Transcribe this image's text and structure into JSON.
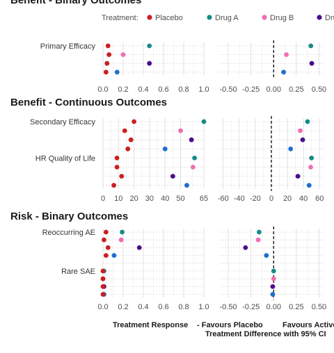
{
  "legend": {
    "title": "Treatment:",
    "items": [
      {
        "name": "Placebo",
        "color": "#CC1F1F"
      },
      {
        "name": "Drug A",
        "color": "#178A8A"
      },
      {
        "name": "Drug B",
        "color": "#F06EB0"
      },
      {
        "name": "Drug C",
        "color": "#4B0C8C"
      }
    ]
  },
  "colors": {
    "Placebo": "#CC1F1F",
    "Drug A": "#178A8A",
    "Drug B": "#F06EB0",
    "Drug C": "#4B0C8C",
    "Drug D": "#1F6FD0"
  },
  "footer": {
    "left_caption": "Treatment Response",
    "diff_left": "- Favours Placebo",
    "diff_right": "Favours Active",
    "diff_caption": "Treatment Difference with 95% CI"
  },
  "chart_data": [
    {
      "type": "scatter",
      "section": "Benefit - Binary Outcomes",
      "panel": "Treatment Response",
      "xlim": [
        0,
        1
      ],
      "xticks": [
        0,
        0.2,
        0.4,
        0.6,
        0.8,
        1.0
      ],
      "xtick_labels": [
        "0.0",
        "0.2",
        "0.4",
        "0.6",
        "0.8",
        "1.0"
      ],
      "row_labels": [
        {
          "label": "Primary Efficacy",
          "row": 0
        }
      ],
      "points": [
        {
          "row": 0,
          "treatment": "Placebo",
          "x": 0.05
        },
        {
          "row": 0,
          "treatment": "Drug A",
          "x": 0.46
        },
        {
          "row": 1,
          "treatment": "Placebo",
          "x": 0.06
        },
        {
          "row": 1,
          "treatment": "Drug B",
          "x": 0.2
        },
        {
          "row": 2,
          "treatment": "Placebo",
          "x": 0.04
        },
        {
          "row": 2,
          "treatment": "Drug C",
          "x": 0.46
        },
        {
          "row": 3,
          "treatment": "Placebo",
          "x": 0.03
        },
        {
          "row": 3,
          "treatment": "Drug D",
          "x": 0.14
        }
      ]
    },
    {
      "type": "scatter",
      "section": "Benefit - Binary Outcomes",
      "panel": "Treatment Difference",
      "xlim": [
        -0.6,
        0.55
      ],
      "xticks": [
        -0.5,
        -0.25,
        0,
        0.25,
        0.5
      ],
      "xtick_labels": [
        "-0.50",
        "-0.25",
        "0.00",
        "0.25",
        "0.50"
      ],
      "reference_line": 0,
      "points": [
        {
          "row": 0,
          "treatment": "Drug A",
          "x": 0.41
        },
        {
          "row": 1,
          "treatment": "Drug B",
          "x": 0.14
        },
        {
          "row": 2,
          "treatment": "Drug C",
          "x": 0.42
        },
        {
          "row": 3,
          "treatment": "Drug D",
          "x": 0.11
        }
      ]
    },
    {
      "type": "scatter",
      "section": "Benefit - Continuous Outcomes",
      "panel": "Treatment Response",
      "xlim": [
        0,
        65
      ],
      "xticks": [
        0,
        10,
        20,
        30,
        40,
        50,
        65
      ],
      "xtick_labels": [
        "0",
        "10",
        "20",
        "30",
        "40",
        "50",
        "65"
      ],
      "row_labels": [
        {
          "label": "Secondary Efficacy",
          "row": 0
        },
        {
          "label": "HR Quality of Life",
          "row": 4
        }
      ],
      "points": [
        {
          "row": 0,
          "treatment": "Placebo",
          "x": 20
        },
        {
          "row": 0,
          "treatment": "Drug A",
          "x": 65
        },
        {
          "row": 1,
          "treatment": "Placebo",
          "x": 14
        },
        {
          "row": 1,
          "treatment": "Drug B",
          "x": 50
        },
        {
          "row": 2,
          "treatment": "Placebo",
          "x": 18
        },
        {
          "row": 2,
          "treatment": "Drug C",
          "x": 57
        },
        {
          "row": 3,
          "treatment": "Placebo",
          "x": 16
        },
        {
          "row": 3,
          "treatment": "Drug D",
          "x": 40
        },
        {
          "row": 4,
          "treatment": "Placebo",
          "x": 9
        },
        {
          "row": 4,
          "treatment": "Drug A",
          "x": 59
        },
        {
          "row": 5,
          "treatment": "Placebo",
          "x": 9
        },
        {
          "row": 5,
          "treatment": "Drug B",
          "x": 58
        },
        {
          "row": 6,
          "treatment": "Placebo",
          "x": 12
        },
        {
          "row": 6,
          "treatment": "Drug C",
          "x": 45
        },
        {
          "row": 7,
          "treatment": "Placebo",
          "x": 7
        },
        {
          "row": 7,
          "treatment": "Drug D",
          "x": 54
        }
      ]
    },
    {
      "type": "scatter",
      "section": "Benefit - Continuous Outcomes",
      "panel": "Treatment Difference",
      "xlim": [
        -65,
        65
      ],
      "xticks": [
        -60,
        -40,
        -20,
        0,
        20,
        40,
        60
      ],
      "xtick_labels": [
        "-60",
        "-40",
        "-20",
        "0",
        "20",
        "40",
        "60"
      ],
      "reference_line": 0,
      "points": [
        {
          "row": 0,
          "treatment": "Drug A",
          "x": 45
        },
        {
          "row": 1,
          "treatment": "Drug B",
          "x": 36
        },
        {
          "row": 2,
          "treatment": "Drug C",
          "x": 39
        },
        {
          "row": 3,
          "treatment": "Drug D",
          "x": 24
        },
        {
          "row": 4,
          "treatment": "Drug A",
          "x": 50
        },
        {
          "row": 5,
          "treatment": "Drug B",
          "x": 49
        },
        {
          "row": 6,
          "treatment": "Drug C",
          "x": 33
        },
        {
          "row": 7,
          "treatment": "Drug D",
          "x": 47
        }
      ]
    },
    {
      "type": "scatter",
      "section": "Risk - Binary Outcomes",
      "panel": "Treatment Response",
      "xlim": [
        0,
        1
      ],
      "xticks": [
        0,
        0.2,
        0.4,
        0.6,
        0.8,
        1.0
      ],
      "xtick_labels": [
        "0.0",
        "0.2",
        "0.4",
        "0.6",
        "0.8",
        "1.0"
      ],
      "row_labels": [
        {
          "label": "Reoccurring AE",
          "row": 0
        },
        {
          "label": "Rare SAE",
          "row": 5
        }
      ],
      "points": [
        {
          "row": 0,
          "treatment": "Placebo",
          "x": 0.03
        },
        {
          "row": 0,
          "treatment": "Drug A",
          "x": 0.19
        },
        {
          "row": 1,
          "treatment": "Placebo",
          "x": 0.01
        },
        {
          "row": 1,
          "treatment": "Drug B",
          "x": 0.18
        },
        {
          "row": 2,
          "treatment": "Placebo",
          "x": 0.05
        },
        {
          "row": 2,
          "treatment": "Drug C",
          "x": 0.36
        },
        {
          "row": 3,
          "treatment": "Placebo",
          "x": 0.03
        },
        {
          "row": 3,
          "treatment": "Drug D",
          "x": 0.11
        },
        {
          "row": 5,
          "treatment": "Drug A",
          "x": 0.01
        },
        {
          "row": 5,
          "treatment": "Placebo",
          "x": 0.0
        },
        {
          "row": 6,
          "treatment": "Drug B",
          "x": 0.0
        },
        {
          "row": 6,
          "treatment": "Placebo",
          "x": 0.0
        },
        {
          "row": 7,
          "treatment": "Drug C",
          "x": 0.01
        },
        {
          "row": 7,
          "treatment": "Placebo",
          "x": 0.0
        },
        {
          "row": 8,
          "treatment": "Drug D",
          "x": 0.01
        },
        {
          "row": 8,
          "treatment": "Placebo",
          "x": 0.0
        }
      ]
    },
    {
      "type": "scatter",
      "section": "Risk - Binary Outcomes",
      "panel": "Treatment Difference",
      "xlim": [
        -0.6,
        0.55
      ],
      "xticks": [
        -0.5,
        -0.25,
        0,
        0.25,
        0.5
      ],
      "xtick_labels": [
        "-0.50",
        "-0.25",
        "0.00",
        "0.25",
        "0.50"
      ],
      "reference_line": 0,
      "points": [
        {
          "row": 0,
          "treatment": "Drug A",
          "x": -0.16
        },
        {
          "row": 1,
          "treatment": "Drug B",
          "x": -0.17
        },
        {
          "row": 2,
          "treatment": "Drug C",
          "x": -0.31
        },
        {
          "row": 3,
          "treatment": "Drug D",
          "x": -0.08
        },
        {
          "row": 5,
          "treatment": "Drug A",
          "x": 0.0
        },
        {
          "row": 6,
          "treatment": "Drug B",
          "x": 0.0
        },
        {
          "row": 7,
          "treatment": "Drug C",
          "x": -0.01
        },
        {
          "row": 8,
          "treatment": "Drug D",
          "x": -0.01
        }
      ]
    }
  ]
}
